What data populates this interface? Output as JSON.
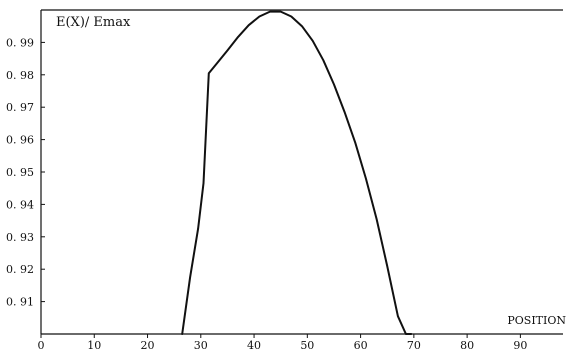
{
  "chart_data": {
    "type": "line",
    "title": "",
    "xlabel": "POSITION",
    "ylabel": "E(X)/ Emax",
    "xlim": [
      0,
      98
    ],
    "ylim": [
      0.9,
      1.0
    ],
    "grid": false,
    "x_ticks": [
      0,
      10,
      20,
      30,
      40,
      50,
      60,
      70,
      80,
      90
    ],
    "x_tick_labels": [
      "0",
      "10",
      "20",
      "30",
      "40",
      "50",
      "60",
      "70",
      "80",
      "90"
    ],
    "y_ticks": [
      0.91,
      0.92,
      0.93,
      0.94,
      0.95,
      0.96,
      0.97,
      0.98,
      0.99
    ],
    "y_tick_labels": [
      "0. 91",
      "0. 92",
      "0. 93",
      "0. 94",
      "0. 95",
      "0. 96",
      "0. 97",
      "0. 98",
      "0. 99"
    ],
    "series": [
      {
        "x": [
          26.5,
          28,
          29.5,
          30.5,
          31.5,
          33,
          35,
          37,
          39,
          41,
          43,
          45,
          47,
          49,
          51,
          53,
          55,
          57,
          59,
          61,
          63,
          65,
          67,
          68.5,
          69.5
        ],
        "y": [
          0.9,
          0.9175,
          0.9325,
          0.9465,
          0.9805,
          0.9835,
          0.9875,
          0.9917,
          0.9953,
          0.998,
          0.9995,
          0.9995,
          0.998,
          0.995,
          0.9905,
          0.9845,
          0.977,
          0.9685,
          0.959,
          0.948,
          0.9355,
          0.921,
          0.9055,
          0.9,
          0.9
        ]
      }
    ]
  }
}
